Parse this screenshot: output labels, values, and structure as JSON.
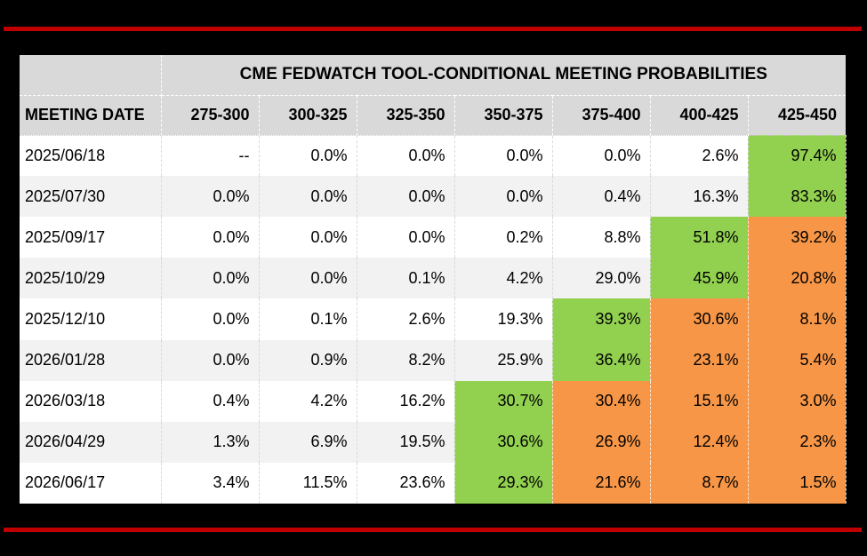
{
  "page": {
    "background_color": "#000000",
    "accent_line_color": "#C00000"
  },
  "chart_data": {
    "type": "table",
    "title": "CME FEDWATCH TOOL-CONDITIONAL MEETING PROBABILITIES",
    "columns": [
      "MEETING DATE",
      "275-300",
      "300-325",
      "325-350",
      "350-375",
      "375-400",
      "400-425",
      "425-450"
    ],
    "rows": [
      {
        "date": "2025/06/18",
        "values": [
          "--",
          "0.0%",
          "0.0%",
          "0.0%",
          "0.0%",
          "2.6%",
          "97.4%"
        ],
        "highlights": [
          "none",
          "none",
          "none",
          "none",
          "none",
          "none",
          "green"
        ]
      },
      {
        "date": "2025/07/30",
        "values": [
          "0.0%",
          "0.0%",
          "0.0%",
          "0.0%",
          "0.4%",
          "16.3%",
          "83.3%"
        ],
        "highlights": [
          "none",
          "none",
          "none",
          "none",
          "none",
          "none",
          "green"
        ]
      },
      {
        "date": "2025/09/17",
        "values": [
          "0.0%",
          "0.0%",
          "0.0%",
          "0.2%",
          "8.8%",
          "51.8%",
          "39.2%"
        ],
        "highlights": [
          "none",
          "none",
          "none",
          "none",
          "none",
          "green",
          "orange"
        ]
      },
      {
        "date": "2025/10/29",
        "values": [
          "0.0%",
          "0.0%",
          "0.1%",
          "4.2%",
          "29.0%",
          "45.9%",
          "20.8%"
        ],
        "highlights": [
          "none",
          "none",
          "none",
          "none",
          "none",
          "green",
          "orange"
        ]
      },
      {
        "date": "2025/12/10",
        "values": [
          "0.0%",
          "0.1%",
          "2.6%",
          "19.3%",
          "39.3%",
          "30.6%",
          "8.1%"
        ],
        "highlights": [
          "none",
          "none",
          "none",
          "none",
          "green",
          "orange",
          "orange"
        ]
      },
      {
        "date": "2026/01/28",
        "values": [
          "0.0%",
          "0.9%",
          "8.2%",
          "25.9%",
          "36.4%",
          "23.1%",
          "5.4%"
        ],
        "highlights": [
          "none",
          "none",
          "none",
          "none",
          "green",
          "orange",
          "orange"
        ]
      },
      {
        "date": "2026/03/18",
        "values": [
          "0.4%",
          "4.2%",
          "16.2%",
          "30.7%",
          "30.4%",
          "15.1%",
          "3.0%"
        ],
        "highlights": [
          "none",
          "none",
          "none",
          "green",
          "orange",
          "orange",
          "orange"
        ]
      },
      {
        "date": "2026/04/29",
        "values": [
          "1.3%",
          "6.9%",
          "19.5%",
          "30.6%",
          "26.9%",
          "12.4%",
          "2.3%"
        ],
        "highlights": [
          "none",
          "none",
          "none",
          "green",
          "orange",
          "orange",
          "orange"
        ]
      },
      {
        "date": "2026/06/17",
        "values": [
          "3.4%",
          "11.5%",
          "23.6%",
          "29.3%",
          "21.6%",
          "8.7%",
          "1.5%"
        ],
        "highlights": [
          "none",
          "none",
          "none",
          "green",
          "orange",
          "orange",
          "orange"
        ]
      }
    ],
    "layout": {
      "highlight_meaning": "green = highest probability cell in row, orange = cells above the highest rate bucket",
      "grid": "dashed column separators, striped rows"
    },
    "colors": {
      "green": "#92D050",
      "orange": "#F79646",
      "header_bg": "#D9D9D9",
      "stripe_bg": "#F2F2F2",
      "row_bg": "#FFFFFF",
      "accent_line": "#C00000",
      "background": "#000000"
    }
  }
}
